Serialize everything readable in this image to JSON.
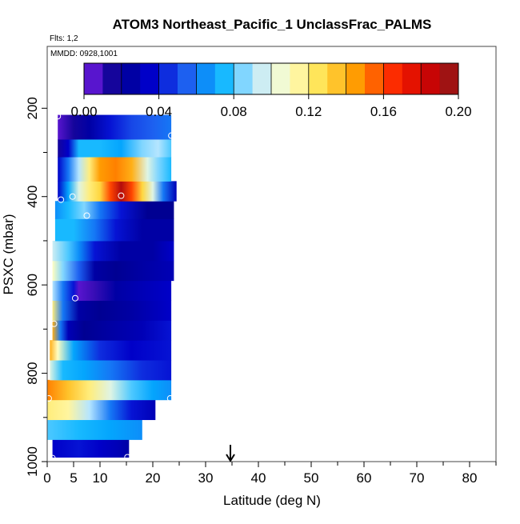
{
  "chart_data": {
    "type": "heatmap",
    "title": "ATOM3 Northeast_Pacific_1 UnclassFrac_PALMS",
    "flights_label": "Flts: 1,2",
    "date_label": "MMDD: 0928,1001",
    "xlabel": "Latitude (deg N)",
    "ylabel": "PSXC (mbar)",
    "xlim": [
      0,
      85
    ],
    "ylim": [
      1000,
      60
    ],
    "x_ticks": [
      0,
      5,
      10,
      20,
      30,
      40,
      50,
      60,
      70,
      80
    ],
    "x_tick_labels": [
      "0",
      "5",
      "10",
      "20",
      "30",
      "40",
      "50",
      "60",
      "70",
      "80"
    ],
    "y_ticks": [
      1000,
      800,
      600,
      400,
      200
    ],
    "y_tick_labels": [
      "1000",
      "800",
      "600",
      "400",
      "200"
    ],
    "colorbar": {
      "min": 0.0,
      "max": 0.2,
      "ticks": [
        0.0,
        0.04,
        0.08,
        0.12,
        0.16,
        0.2
      ],
      "tick_labels": [
        "0.00",
        "0.04",
        "0.08",
        "0.12",
        "0.16",
        "0.20"
      ],
      "colors": [
        "#7a1de8",
        "#00008b",
        "#0000cd",
        "#1e5ef0",
        "#00b2ff",
        "#bfe8ff",
        "#ffffc8",
        "#ffe14a",
        "#ff9a00",
        "#ff3000",
        "#d40000",
        "#8b1a1a"
      ]
    },
    "arrow_marker_x": 34.7,
    "rows": [
      {
        "p0": 990,
        "p1": 950,
        "x0": 1,
        "x1": 15.5,
        "stops": [
          [
            1,
            0.035
          ],
          [
            6,
            0.04
          ],
          [
            10,
            0.035
          ],
          [
            13.5,
            0.03
          ],
          [
            15.5,
            0.025
          ]
        ]
      },
      {
        "p0": 950,
        "p1": 905,
        "x0": 0,
        "x1": 18,
        "stops": [
          [
            0,
            0.08
          ],
          [
            6,
            0.075
          ],
          [
            12,
            0.07
          ],
          [
            18,
            0.065
          ]
        ]
      },
      {
        "p0": 905,
        "p1": 860,
        "x0": 0,
        "x1": 20.5,
        "stops": [
          [
            0,
            0.12
          ],
          [
            4,
            0.115
          ],
          [
            8,
            0.09
          ],
          [
            12,
            0.06
          ],
          [
            16,
            0.04
          ],
          [
            20.5,
            0.03
          ]
        ]
      },
      {
        "p0": 860,
        "p1": 815,
        "x0": 0,
        "x1": 23.5,
        "stops": [
          [
            0,
            0.15
          ],
          [
            4,
            0.135
          ],
          [
            8,
            0.12
          ],
          [
            12,
            0.1
          ],
          [
            16,
            0.08
          ],
          [
            20,
            0.07
          ],
          [
            23.5,
            0.065
          ]
        ]
      },
      {
        "p0": 815,
        "p1": 770,
        "x0": 0.5,
        "x1": 23.5,
        "stops": [
          [
            0.5,
            0.1
          ],
          [
            3,
            0.075
          ],
          [
            7,
            0.07
          ],
          [
            12,
            0.06
          ],
          [
            18,
            0.045
          ],
          [
            23.5,
            0.04
          ]
        ]
      },
      {
        "p0": 770,
        "p1": 725,
        "x0": 0.5,
        "x1": 23.5,
        "stops": [
          [
            0.5,
            0.14
          ],
          [
            2,
            0.11
          ],
          [
            5,
            0.07
          ],
          [
            10,
            0.045
          ],
          [
            16,
            0.035
          ],
          [
            23.5,
            0.04
          ]
        ]
      },
      {
        "p0": 725,
        "p1": 680,
        "x0": 1,
        "x1": 23.5,
        "stops": [
          [
            1,
            0.14
          ],
          [
            2.5,
            0.06
          ],
          [
            4,
            0.03
          ],
          [
            7,
            0.02
          ],
          [
            12,
            0.025
          ],
          [
            18,
            0.03
          ],
          [
            23.5,
            0.04
          ]
        ]
      },
      {
        "p0": 680,
        "p1": 635,
        "x0": 1,
        "x1": 23.5,
        "stops": [
          [
            1,
            0.12
          ],
          [
            3,
            0.06
          ],
          [
            6,
            0.025
          ],
          [
            10,
            0.02
          ],
          [
            16,
            0.025
          ],
          [
            23.5,
            0.035
          ]
        ]
      },
      {
        "p0": 635,
        "p1": 590,
        "x0": 1,
        "x1": 23.5,
        "stops": [
          [
            1,
            0.09
          ],
          [
            3,
            0.06
          ],
          [
            5,
            0.04
          ],
          [
            6,
            0.005
          ],
          [
            9,
            0.01
          ],
          [
            13,
            0.025
          ],
          [
            18,
            0.03
          ],
          [
            23.5,
            0.035
          ]
        ]
      },
      {
        "p0": 590,
        "p1": 545,
        "x0": 1,
        "x1": 24,
        "stops": [
          [
            1,
            0.11
          ],
          [
            3,
            0.085
          ],
          [
            6,
            0.055
          ],
          [
            9,
            0.025
          ],
          [
            13,
            0.02
          ],
          [
            18,
            0.025
          ],
          [
            24,
            0.03
          ]
        ]
      },
      {
        "p0": 545,
        "p1": 500,
        "x0": 1,
        "x1": 24,
        "stops": [
          [
            1,
            0.095
          ],
          [
            4,
            0.08
          ],
          [
            6,
            0.065
          ],
          [
            9,
            0.04
          ],
          [
            14,
            0.025
          ],
          [
            20,
            0.025
          ],
          [
            24,
            0.035
          ]
        ]
      },
      {
        "p0": 500,
        "p1": 450,
        "x0": 1.5,
        "x1": 24,
        "stops": [
          [
            1.5,
            0.075
          ],
          [
            5,
            0.075
          ],
          [
            9,
            0.06
          ],
          [
            13,
            0.04
          ],
          [
            18,
            0.025
          ],
          [
            24,
            0.025
          ]
        ]
      },
      {
        "p0": 450,
        "p1": 410,
        "x0": 1.5,
        "x1": 24,
        "stops": [
          [
            1.5,
            0.065
          ],
          [
            4,
            0.075
          ],
          [
            7,
            0.085
          ],
          [
            10,
            0.06
          ],
          [
            14,
            0.04
          ],
          [
            19,
            0.02
          ],
          [
            24,
            0.02
          ]
        ]
      },
      {
        "p0": 410,
        "p1": 365,
        "x0": 2,
        "x1": 24.5,
        "stops": [
          [
            2,
            0.035
          ],
          [
            4,
            0.07
          ],
          [
            6,
            0.1
          ],
          [
            8,
            0.12
          ],
          [
            10,
            0.13
          ],
          [
            12,
            0.16
          ],
          [
            14,
            0.19
          ],
          [
            16,
            0.16
          ],
          [
            18,
            0.13
          ],
          [
            20,
            0.1
          ],
          [
            22,
            0.06
          ],
          [
            24.5,
            0.03
          ]
        ]
      },
      {
        "p0": 365,
        "p1": 310,
        "x0": 2,
        "x1": 23.5,
        "stops": [
          [
            2,
            0.035
          ],
          [
            4,
            0.06
          ],
          [
            6,
            0.09
          ],
          [
            8,
            0.12
          ],
          [
            10,
            0.145
          ],
          [
            13,
            0.15
          ],
          [
            16,
            0.14
          ],
          [
            19,
            0.1
          ],
          [
            21,
            0.085
          ],
          [
            23.5,
            0.075
          ]
        ]
      },
      {
        "p0": 310,
        "p1": 270,
        "x0": 2,
        "x1": 23.5,
        "stops": [
          [
            2,
            0.015
          ],
          [
            4,
            0.035
          ],
          [
            6,
            0.075
          ],
          [
            10,
            0.075
          ],
          [
            14,
            0.07
          ],
          [
            18,
            0.085
          ],
          [
            21,
            0.09
          ],
          [
            23.5,
            0.08
          ]
        ]
      },
      {
        "p0": 270,
        "p1": 215,
        "x0": 2,
        "x1": 23.5,
        "stops": [
          [
            2,
            0.005
          ],
          [
            5,
            0.015
          ],
          [
            8,
            0.025
          ],
          [
            12,
            0.04
          ],
          [
            16,
            0.05
          ],
          [
            20,
            0.055
          ],
          [
            23.5,
            0.06
          ]
        ]
      }
    ],
    "sample_points": [
      {
        "lat": 1.0,
        "p": 992
      },
      {
        "lat": 15.2,
        "p": 990
      },
      {
        "lat": 0.3,
        "p": 857
      },
      {
        "lat": 23.3,
        "p": 857
      },
      {
        "lat": 1.3,
        "p": 688
      },
      {
        "lat": 5.3,
        "p": 630
      },
      {
        "lat": 7.5,
        "p": 443
      },
      {
        "lat": 2.6,
        "p": 407
      },
      {
        "lat": 4.8,
        "p": 400
      },
      {
        "lat": 14.0,
        "p": 398
      },
      {
        "lat": 2.0,
        "p": 218
      },
      {
        "lat": 23.5,
        "p": 262
      }
    ]
  }
}
